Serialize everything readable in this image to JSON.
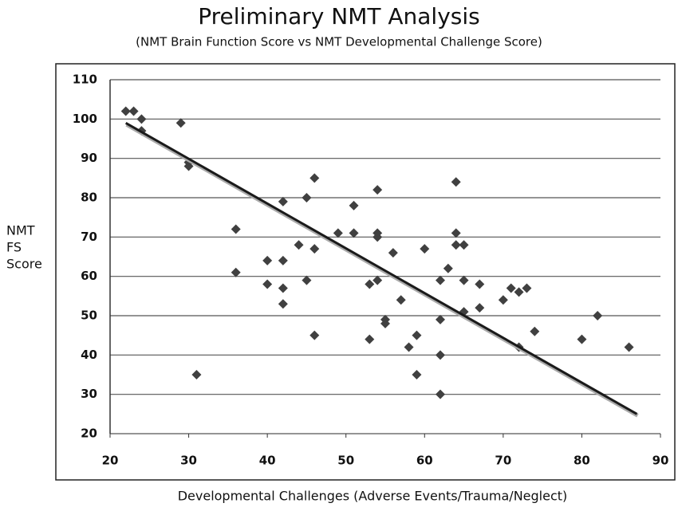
{
  "chart_data": {
    "type": "scatter",
    "title": "Preliminary NMT Analysis",
    "subtitle": "(NMT Brain Function Score vs NMT Developmental Challenge Score)",
    "xlabel": "Developmental Challenges (Adverse Events/Trauma/Neglect)",
    "ylabel": [
      "NMT",
      "FS",
      "Score"
    ],
    "xlim": [
      20,
      90
    ],
    "xticks": [
      20,
      30,
      40,
      50,
      60,
      70,
      80,
      90
    ],
    "ylim": [
      20,
      110
    ],
    "yticks": [
      20,
      30,
      40,
      50,
      60,
      70,
      80,
      90,
      100,
      110
    ],
    "grid": true,
    "series": [
      {
        "color": "#404040",
        "x": [
          22,
          23,
          24,
          24,
          29,
          30,
          30,
          31,
          36,
          36,
          40,
          40,
          42,
          42,
          42,
          42,
          44,
          45,
          45,
          46,
          46,
          46,
          49,
          51,
          51,
          53,
          53,
          54,
          54,
          54,
          54,
          55,
          55,
          56,
          57,
          58,
          59,
          59,
          60,
          62,
          62,
          62,
          62,
          63,
          64,
          64,
          64,
          65,
          65,
          65,
          67,
          67,
          70,
          71,
          72,
          72,
          73,
          74,
          80,
          82,
          86
        ],
        "values": [
          102,
          102,
          100,
          97,
          99,
          89,
          88,
          35,
          72,
          61,
          64,
          58,
          79,
          64,
          57,
          53,
          68,
          80,
          59,
          85,
          67,
          45,
          71,
          78,
          71,
          58,
          44,
          82,
          71,
          70,
          59,
          49,
          48,
          66,
          54,
          42,
          45,
          35,
          67,
          59,
          49,
          40,
          30,
          62,
          84,
          71,
          68,
          68,
          59,
          51,
          58,
          52,
          54,
          57,
          56,
          42,
          57,
          46,
          44,
          50,
          42
        ]
      }
    ],
    "trendline": {
      "color": "#1a1a1a",
      "x": [
        22,
        87
      ],
      "values": [
        99,
        25
      ]
    }
  }
}
